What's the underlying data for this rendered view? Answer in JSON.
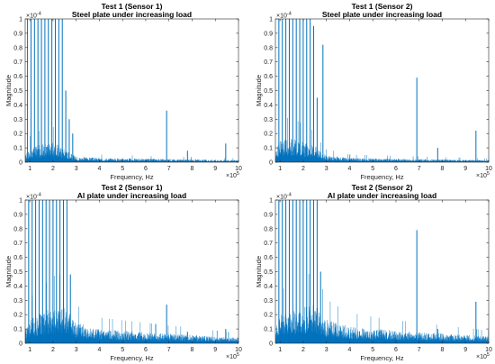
{
  "figure": {
    "spectrum_color": "#0072BD",
    "axis_color": "#262626",
    "grid": false
  },
  "chart_data": [
    {
      "type": "line",
      "title": "Test 1 (Sensor 1)",
      "subtitle": "Steel plate under increasing load",
      "xlabel": "Frequency, Hz",
      "ylabel": "Magnitude",
      "x_exponent_label": "×10",
      "x_exponent": "5",
      "y_exponent_label": "×10",
      "y_exponent": "-4",
      "xlim": [
        0.8,
        10
      ],
      "ylim": [
        0,
        1
      ],
      "xticks": [
        1,
        2,
        3,
        4,
        5,
        6,
        7,
        8,
        9,
        10
      ],
      "yticks": [
        0,
        0.1,
        0.2,
        0.3,
        0.4,
        0.5,
        0.6,
        0.7,
        0.8,
        0.9,
        1
      ],
      "series": [
        {
          "noise": [
            [
              0.8,
              0.05
            ],
            [
              1.0,
              0.1
            ],
            [
              1.5,
              0.13
            ],
            [
              2.0,
              0.14
            ],
            [
              2.5,
              0.1
            ],
            [
              2.8,
              0.06
            ],
            [
              3.0,
              0.04
            ],
            [
              4.0,
              0.03
            ],
            [
              6.0,
              0.025
            ],
            [
              8.0,
              0.02
            ],
            [
              10.0,
              0.015
            ]
          ],
          "peaks": [
            [
              0.9,
              1
            ],
            [
              1.05,
              1
            ],
            [
              1.2,
              1
            ],
            [
              1.35,
              1
            ],
            [
              1.5,
              1
            ],
            [
              1.65,
              1
            ],
            [
              1.8,
              1
            ],
            [
              1.95,
              1
            ],
            [
              2.1,
              1
            ],
            [
              2.25,
              1
            ],
            [
              2.4,
              1
            ],
            [
              2.55,
              0.5
            ],
            [
              2.7,
              0.3
            ],
            [
              2.85,
              0.2
            ],
            [
              6.9,
              0.36
            ],
            [
              7.8,
              0.08
            ],
            [
              9.45,
              0.13
            ]
          ]
        }
      ]
    },
    {
      "type": "line",
      "title": "Test 1 (Sensor 2)",
      "subtitle": "Steel plate under increasing load",
      "xlabel": "Frequency, Hz",
      "ylabel": "Magnitude",
      "x_exponent_label": "×10",
      "x_exponent": "5",
      "y_exponent_label": "×10",
      "y_exponent": "-4",
      "xlim": [
        0.8,
        10
      ],
      "ylim": [
        0,
        1
      ],
      "xticks": [
        1,
        2,
        3,
        4,
        5,
        6,
        7,
        8,
        9,
        10
      ],
      "yticks": [
        0,
        0.1,
        0.2,
        0.3,
        0.4,
        0.5,
        0.6,
        0.7,
        0.8,
        0.9,
        1
      ],
      "series": [
        {
          "noise": [
            [
              0.8,
              0.08
            ],
            [
              1.0,
              0.18
            ],
            [
              1.5,
              0.17
            ],
            [
              2.0,
              0.15
            ],
            [
              2.5,
              0.12
            ],
            [
              2.8,
              0.07
            ],
            [
              3.0,
              0.05
            ],
            [
              4.0,
              0.03
            ],
            [
              6.0,
              0.025
            ],
            [
              8.0,
              0.02
            ],
            [
              10.0,
              0.015
            ]
          ],
          "peaks": [
            [
              0.95,
              1
            ],
            [
              1.1,
              1
            ],
            [
              1.25,
              1
            ],
            [
              1.4,
              1
            ],
            [
              1.55,
              1
            ],
            [
              1.7,
              1
            ],
            [
              1.85,
              1
            ],
            [
              2.0,
              1
            ],
            [
              2.15,
              1
            ],
            [
              2.3,
              1
            ],
            [
              2.45,
              0.95
            ],
            [
              2.6,
              0.45
            ],
            [
              2.85,
              0.82
            ],
            [
              6.9,
              0.59
            ],
            [
              7.8,
              0.1
            ],
            [
              9.45,
              0.22
            ]
          ]
        }
      ]
    },
    {
      "type": "line",
      "title": "Test 2 (Sensor 1)",
      "subtitle": "Al plate under increasing load",
      "xlabel": "Frequency, Hz",
      "ylabel": "Magnitude",
      "x_exponent_label": "×10",
      "x_exponent": "5",
      "y_exponent_label": "×10",
      "y_exponent": "-4",
      "xlim": [
        0.8,
        10
      ],
      "ylim": [
        0,
        1
      ],
      "xticks": [
        1,
        2,
        3,
        4,
        5,
        6,
        7,
        8,
        9,
        10
      ],
      "yticks": [
        0,
        0.1,
        0.2,
        0.3,
        0.4,
        0.5,
        0.6,
        0.7,
        0.8,
        0.9,
        1
      ],
      "series": [
        {
          "noise": [
            [
              0.8,
              0.1
            ],
            [
              1.0,
              0.18
            ],
            [
              1.5,
              0.22
            ],
            [
              2.0,
              0.26
            ],
            [
              2.5,
              0.28
            ],
            [
              2.8,
              0.2
            ],
            [
              3.0,
              0.15
            ],
            [
              4.0,
              0.1
            ],
            [
              6.0,
              0.08
            ],
            [
              8.0,
              0.06
            ],
            [
              10.0,
              0.04
            ]
          ],
          "peaks": [
            [
              0.95,
              1
            ],
            [
              1.1,
              1
            ],
            [
              1.25,
              1
            ],
            [
              1.4,
              1
            ],
            [
              1.55,
              1
            ],
            [
              1.7,
              1
            ],
            [
              1.85,
              1
            ],
            [
              2.0,
              1
            ],
            [
              2.15,
              1
            ],
            [
              2.3,
              1
            ],
            [
              2.45,
              1
            ],
            [
              2.6,
              1
            ],
            [
              2.75,
              0.48
            ],
            [
              6.9,
              0.27
            ],
            [
              7.8,
              0.08
            ],
            [
              9.45,
              0.1
            ]
          ]
        }
      ]
    },
    {
      "type": "line",
      "title": "Test 2 (Sensor 2)",
      "subtitle": "Al plate under increasing load",
      "xlabel": "Frequency, Hz",
      "ylabel": "Magnitude",
      "x_exponent_label": "×10",
      "x_exponent": "5",
      "y_exponent_label": "×10",
      "y_exponent": "-4",
      "xlim": [
        0.8,
        10
      ],
      "ylim": [
        0,
        1
      ],
      "xticks": [
        1,
        2,
        3,
        4,
        5,
        6,
        7,
        8,
        9,
        10
      ],
      "yticks": [
        0,
        0.1,
        0.2,
        0.3,
        0.4,
        0.5,
        0.6,
        0.7,
        0.8,
        0.9,
        1
      ],
      "series": [
        {
          "noise": [
            [
              0.8,
              0.1
            ],
            [
              1.0,
              0.2
            ],
            [
              1.5,
              0.24
            ],
            [
              2.0,
              0.26
            ],
            [
              2.5,
              0.28
            ],
            [
              2.8,
              0.22
            ],
            [
              3.0,
              0.17
            ],
            [
              4.0,
              0.12
            ],
            [
              6.0,
              0.09
            ],
            [
              8.0,
              0.07
            ],
            [
              10.0,
              0.05
            ]
          ],
          "peaks": [
            [
              0.95,
              1
            ],
            [
              1.1,
              1
            ],
            [
              1.25,
              1
            ],
            [
              1.4,
              1
            ],
            [
              1.55,
              1
            ],
            [
              1.7,
              1
            ],
            [
              1.85,
              1
            ],
            [
              2.0,
              1
            ],
            [
              2.15,
              1
            ],
            [
              2.3,
              1
            ],
            [
              2.45,
              1
            ],
            [
              2.6,
              1
            ],
            [
              2.75,
              0.5
            ],
            [
              6.9,
              0.79
            ],
            [
              7.8,
              0.1
            ],
            [
              9.45,
              0.29
            ]
          ]
        }
      ]
    }
  ]
}
